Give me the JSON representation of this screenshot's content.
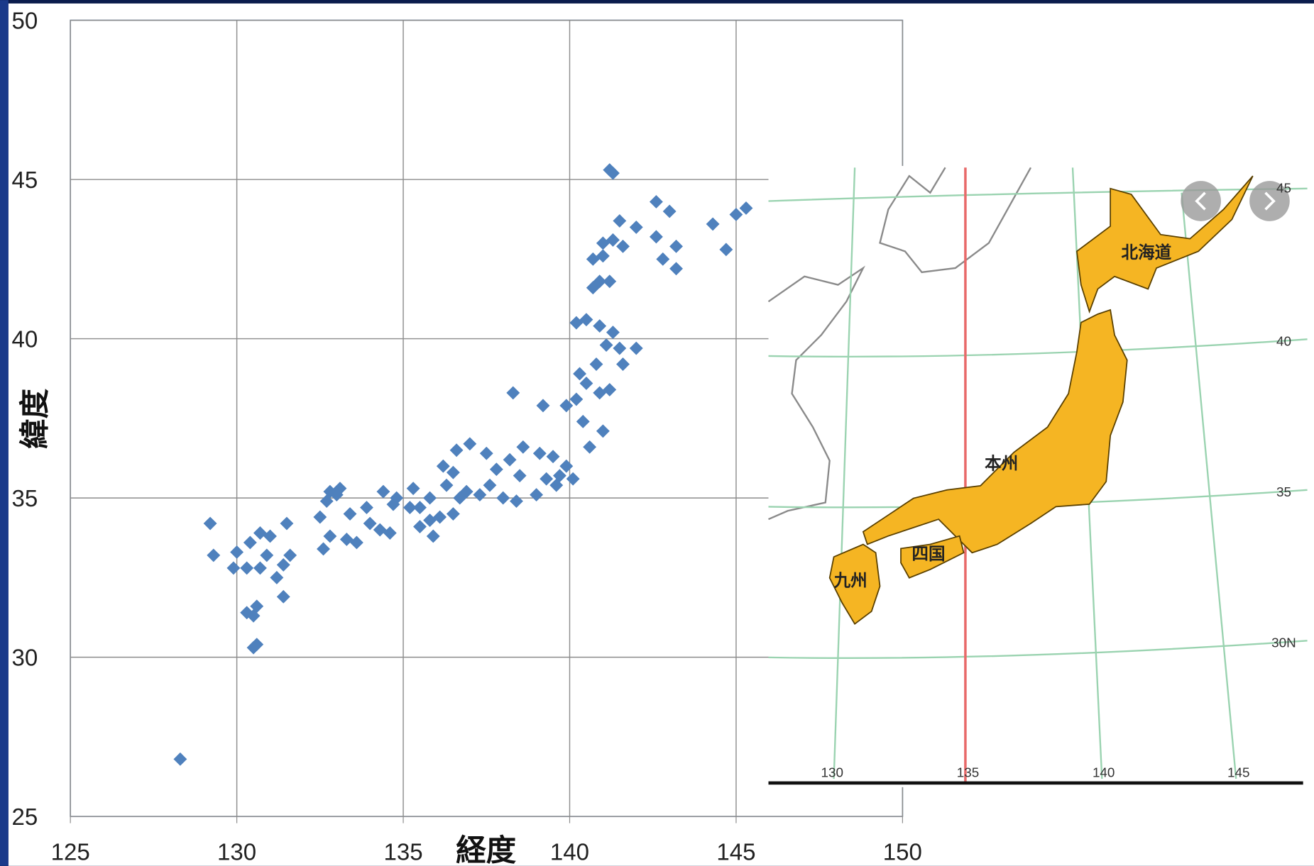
{
  "chart_data": {
    "type": "scatter",
    "x_label": "経度",
    "y_label": "緯度",
    "color": "#4f81bd",
    "grid": true,
    "xlim": [
      125,
      150
    ],
    "xticks": [
      125,
      130,
      135,
      140,
      145,
      150
    ],
    "ylim": [
      25,
      50
    ],
    "yticks": [
      25,
      30,
      35,
      40,
      45,
      50
    ],
    "x": [
      141.2,
      141.3,
      142.6,
      143,
      144.3,
      145,
      145.3,
      144.7,
      141,
      141.3,
      141.6,
      142,
      141.5,
      142.6,
      143.2,
      142.8,
      143.2,
      141,
      140.7,
      140.9,
      141.2,
      140.7,
      140.2,
      140.5,
      140.9,
      141.3,
      141.1,
      141.5,
      142,
      140.8,
      141.6,
      140.3,
      140.5,
      140.9,
      140.2,
      141.2,
      139.9,
      140.4,
      141,
      140.6,
      139.2,
      138.3,
      140.1,
      139.7,
      139.6,
      139.3,
      139.9,
      139.5,
      139.1,
      138.6,
      138.2,
      138.5,
      137.8,
      137.5,
      137,
      136.6,
      136.9,
      137.3,
      138,
      138.4,
      139,
      137.6,
      136.5,
      136.2,
      136.3,
      135.8,
      135.5,
      135.2,
      135.8,
      135.5,
      135.9,
      136.1,
      136.5,
      136.7,
      135.3,
      134.8,
      134.4,
      134.7,
      133.9,
      133.4,
      132.5,
      131.5,
      133.1,
      132.8,
      132.7,
      134,
      134.3,
      133.6,
      133.3,
      132.8,
      132.6,
      134.6,
      133,
      130.4,
      130.7,
      131,
      130.9,
      131.6,
      131.4,
      130.7,
      130.3,
      130,
      129.9,
      131.2,
      131.4,
      130.6,
      130.5,
      130.3,
      130.6,
      130.5,
      129.3,
      129.2,
      128.3
    ],
    "values": [
      45.3,
      45.2,
      44.3,
      44,
      43.6,
      43.9,
      44.1,
      42.8,
      43,
      43.1,
      42.9,
      43.5,
      43.7,
      43.2,
      42.9,
      42.5,
      42.2,
      42.6,
      42.5,
      41.8,
      41.8,
      41.6,
      40.5,
      40.6,
      40.4,
      40.2,
      39.8,
      39.7,
      39.7,
      39.2,
      39.2,
      38.9,
      38.6,
      38.3,
      38.1,
      38.4,
      37.9,
      37.4,
      37.1,
      36.6,
      37.9,
      38.3,
      35.6,
      35.7,
      35.4,
      35.6,
      36,
      36.3,
      36.4,
      36.6,
      36.2,
      35.7,
      35.9,
      36.4,
      36.7,
      36.5,
      35.2,
      35.1,
      35,
      34.9,
      35.1,
      35.4,
      35.8,
      36,
      35.4,
      35,
      34.7,
      34.7,
      34.3,
      34.1,
      33.8,
      34.4,
      34.5,
      35,
      35.3,
      35,
      35.2,
      34.8,
      34.7,
      34.5,
      34.4,
      34.2,
      35.3,
      35.2,
      34.9,
      34.2,
      34,
      33.6,
      33.7,
      33.8,
      33.4,
      33.9,
      35.1,
      33.6,
      33.9,
      33.8,
      33.2,
      33.2,
      32.9,
      32.8,
      32.8,
      33.3,
      32.8,
      32.5,
      31.9,
      31.6,
      31.3,
      31.4,
      30.4,
      30.3,
      33.2,
      34.2,
      26.8
    ]
  },
  "map": {
    "regions": [
      "北海道",
      "本州",
      "四国",
      "九州"
    ],
    "lon_labels": [
      "130",
      "135",
      "140",
      "145"
    ],
    "lat_labels": [
      "45",
      "40",
      "35",
      "30N"
    ]
  }
}
